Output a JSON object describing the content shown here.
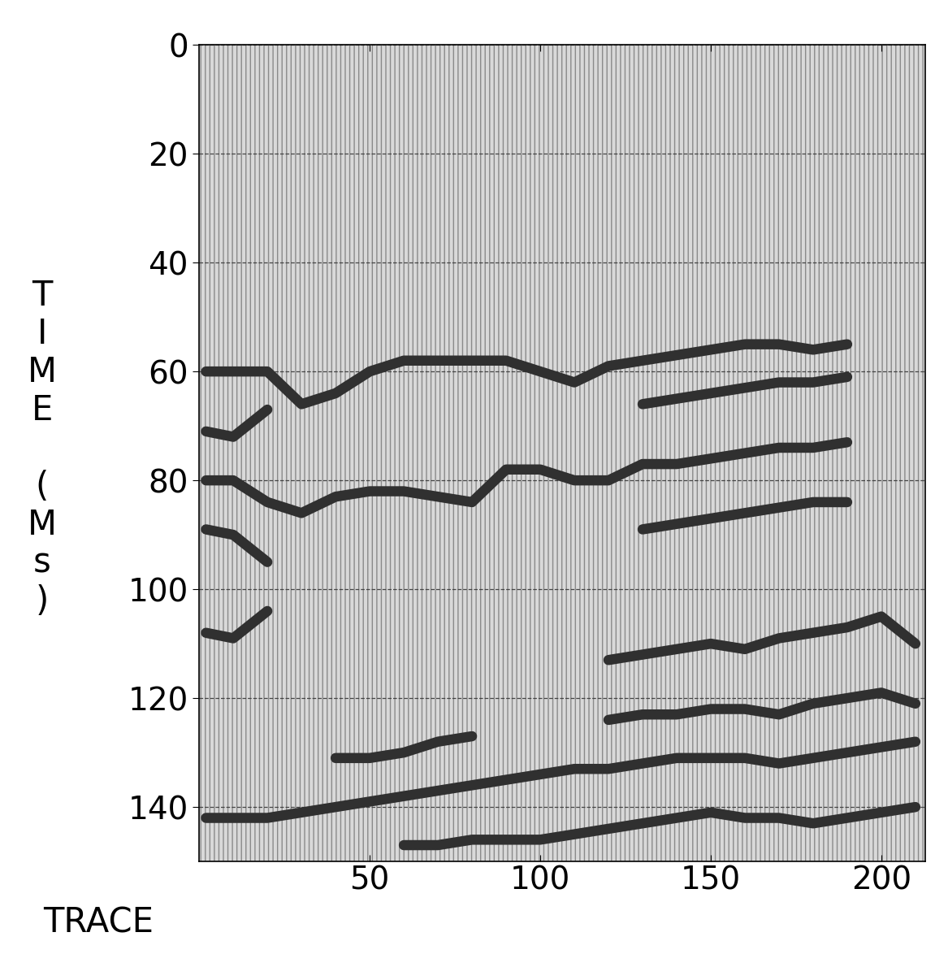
{
  "chart_data": {
    "type": "line",
    "x_label": "TRACE",
    "y_label": "TIME (Ms)",
    "x": [
      2,
      10,
      20,
      30,
      40,
      50,
      60,
      70,
      80,
      90,
      100,
      110,
      120,
      130,
      140,
      150,
      160,
      170,
      180,
      190,
      200,
      210
    ],
    "series": [
      {
        "color": "#303030",
        "values": [
          60,
          60,
          60,
          66,
          64,
          60,
          58,
          58,
          58,
          58,
          60,
          62,
          59,
          58,
          57,
          56,
          55,
          55,
          56,
          55,
          null,
          null
        ]
      },
      {
        "color": "#303030",
        "values": [
          71,
          72,
          67,
          null,
          null,
          null,
          null,
          null,
          null,
          null,
          null,
          null,
          null,
          66,
          65,
          64,
          63,
          62,
          62,
          61,
          null,
          null
        ]
      },
      {
        "color": "#303030",
        "values": [
          80,
          80,
          84,
          86,
          83,
          82,
          82,
          83,
          84,
          78,
          78,
          80,
          80,
          77,
          77,
          76,
          75,
          74,
          74,
          73,
          null,
          null
        ]
      },
      {
        "color": "#303030",
        "values": [
          89,
          90,
          95,
          null,
          null,
          null,
          null,
          null,
          null,
          null,
          null,
          null,
          null,
          89,
          88,
          87,
          86,
          85,
          84,
          84,
          null,
          null
        ]
      },
      {
        "color": "#303030",
        "values": [
          108,
          109,
          104,
          null,
          null,
          null,
          null,
          null,
          null,
          null,
          null,
          null,
          113,
          112,
          111,
          110,
          111,
          109,
          108,
          107,
          105,
          110
        ]
      },
      {
        "color": "#303030",
        "values": [
          null,
          null,
          null,
          null,
          131,
          131,
          130,
          128,
          127,
          null,
          null,
          null,
          124,
          123,
          123,
          122,
          122,
          123,
          121,
          120,
          119,
          121
        ]
      },
      {
        "color": "#303030",
        "values": [
          142,
          142,
          142,
          141,
          140,
          139,
          138,
          137,
          136,
          135,
          134,
          133,
          133,
          132,
          131,
          131,
          131,
          132,
          131,
          130,
          129,
          128
        ]
      },
      {
        "color": "#303030",
        "values": [
          null,
          null,
          null,
          null,
          null,
          null,
          147,
          147,
          146,
          146,
          146,
          145,
          144,
          143,
          142,
          141,
          142,
          142,
          143,
          142,
          141,
          140
        ]
      }
    ],
    "xlim": [
      0,
      213
    ],
    "ylim": [
      150,
      0
    ],
    "xticks": [
      50,
      100,
      150,
      200
    ],
    "yticks": [
      0,
      20,
      40,
      60,
      80,
      100,
      120,
      140
    ],
    "grid": true
  }
}
